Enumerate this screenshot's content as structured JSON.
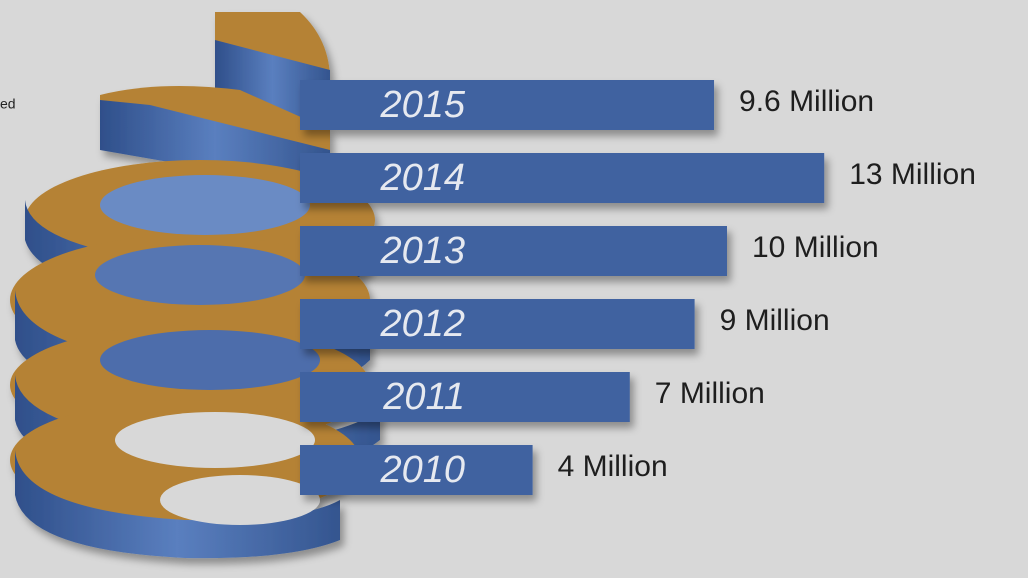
{
  "chart_data": {
    "type": "bar",
    "orientation": "horizontal",
    "annotation": "ed",
    "categories": [
      "2015",
      "2014",
      "2013",
      "2012",
      "2011",
      "2010"
    ],
    "values": [
      9.6,
      13,
      10,
      9,
      7,
      4
    ],
    "value_labels": [
      "9.6 Million",
      "13 Million",
      "10 Million",
      "9 Million",
      "7 Million",
      "4 Million"
    ],
    "color": "#3f62a0"
  }
}
